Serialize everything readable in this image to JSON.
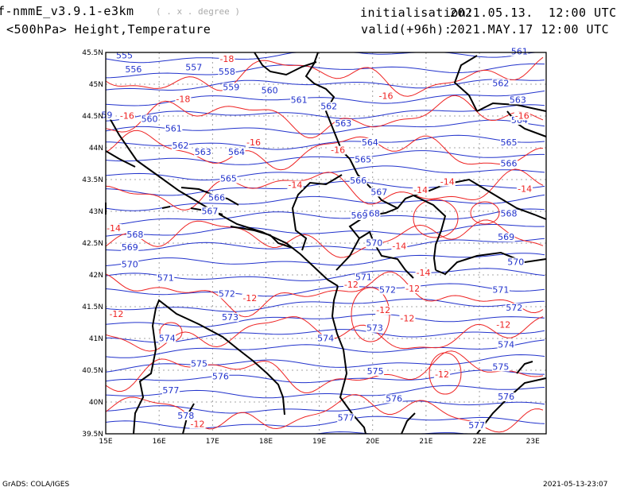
{
  "header": {
    "model": "f-nmmE_v3.9.1-e3km",
    "projection_note": "( . x . degree )",
    "field": "<500hPa> Height,Temperature",
    "init_label": "initialisation:",
    "init_value": "2021.05.13.  12:00 UTC",
    "valid_label": "valid(+96h):",
    "valid_value": "2021.MAY.17 12:00 UTC"
  },
  "footer": {
    "credit": "GrADS: COLA/IGES",
    "stamp": "2021-05-13-23:07"
  },
  "map": {
    "lon_labels": [
      "15E",
      "16E",
      "17E",
      "18E",
      "19E",
      "20E",
      "21E",
      "22E",
      "23E"
    ],
    "lat_labels": [
      "45.5N",
      "45N",
      "44.5N",
      "44N",
      "43.5N",
      "43N",
      "42.5N",
      "42N",
      "41.5N",
      "41N",
      "40.5N",
      "40N",
      "39.5N"
    ],
    "colors": {
      "height": "#2233cc",
      "temperature": "#ee2222",
      "coast": "#000000",
      "grid": "#888888"
    },
    "height_labels": [
      {
        "t": "555",
        "lon": 15.35,
        "lat": 45.42
      },
      {
        "t": "556",
        "lon": 15.52,
        "lat": 45.2
      },
      {
        "t": "557",
        "lon": 16.65,
        "lat": 45.23
      },
      {
        "t": "558",
        "lon": 17.27,
        "lat": 45.16
      },
      {
        "t": "559",
        "lon": 17.35,
        "lat": 44.92
      },
      {
        "t": "560",
        "lon": 18.07,
        "lat": 44.87
      },
      {
        "t": "561",
        "lon": 18.62,
        "lat": 44.72
      },
      {
        "t": "562",
        "lon": 19.18,
        "lat": 44.62
      },
      {
        "t": "563",
        "lon": 19.45,
        "lat": 44.35
      },
      {
        "t": "564",
        "lon": 19.95,
        "lat": 44.05
      },
      {
        "t": "565",
        "lon": 19.82,
        "lat": 43.78
      },
      {
        "t": "566",
        "lon": 19.73,
        "lat": 43.45
      },
      {
        "t": "567",
        "lon": 20.12,
        "lat": 43.27
      },
      {
        "t": "568",
        "lon": 19.98,
        "lat": 42.93
      },
      {
        "t": "569",
        "lon": 19.75,
        "lat": 42.9
      },
      {
        "t": "570",
        "lon": 20.03,
        "lat": 42.47
      },
      {
        "t": "571",
        "lon": 19.83,
        "lat": 41.93
      },
      {
        "t": "572",
        "lon": 20.28,
        "lat": 41.73
      },
      {
        "t": "573",
        "lon": 20.04,
        "lat": 41.13
      },
      {
        "t": "574",
        "lon": 19.12,
        "lat": 40.97
      },
      {
        "t": "575",
        "lon": 20.05,
        "lat": 40.45
      },
      {
        "t": "576",
        "lon": 20.4,
        "lat": 40.02
      },
      {
        "t": "577",
        "lon": 19.5,
        "lat": 39.72
      },
      {
        "t": "59",
        "lon": 15.02,
        "lat": 44.48
      },
      {
        "t": "560",
        "lon": 15.82,
        "lat": 44.42
      },
      {
        "t": "561",
        "lon": 16.27,
        "lat": 44.27
      },
      {
        "t": "562",
        "lon": 16.4,
        "lat": 44.0
      },
      {
        "t": "563",
        "lon": 16.82,
        "lat": 43.9
      },
      {
        "t": "564",
        "lon": 17.45,
        "lat": 43.9
      },
      {
        "t": "565",
        "lon": 17.3,
        "lat": 43.48
      },
      {
        "t": "566",
        "lon": 17.08,
        "lat": 43.18
      },
      {
        "t": "567",
        "lon": 16.95,
        "lat": 42.97
      },
      {
        "t": "568",
        "lon": 15.55,
        "lat": 42.6
      },
      {
        "t": "569",
        "lon": 15.45,
        "lat": 42.4
      },
      {
        "t": "570",
        "lon": 15.45,
        "lat": 42.13
      },
      {
        "t": "571",
        "lon": 16.12,
        "lat": 41.92
      },
      {
        "t": "572",
        "lon": 17.27,
        "lat": 41.67
      },
      {
        "t": "573",
        "lon": 17.33,
        "lat": 41.3
      },
      {
        "t": "574",
        "lon": 16.15,
        "lat": 40.97
      },
      {
        "t": "575",
        "lon": 16.75,
        "lat": 40.57
      },
      {
        "t": "576",
        "lon": 17.15,
        "lat": 40.37
      },
      {
        "t": "577",
        "lon": 16.22,
        "lat": 40.15
      },
      {
        "t": "578",
        "lon": 16.5,
        "lat": 39.75
      },
      {
        "t": "561",
        "lon": 22.75,
        "lat": 45.48
      },
      {
        "t": "562",
        "lon": 22.4,
        "lat": 44.98
      },
      {
        "t": "563",
        "lon": 22.72,
        "lat": 44.72
      },
      {
        "t": "564",
        "lon": 22.75,
        "lat": 44.4
      },
      {
        "t": "565",
        "lon": 22.55,
        "lat": 44.05
      },
      {
        "t": "566",
        "lon": 22.55,
        "lat": 43.72
      },
      {
        "t": "568",
        "lon": 22.55,
        "lat": 42.93
      },
      {
        "t": "569",
        "lon": 22.5,
        "lat": 42.56
      },
      {
        "t": "570",
        "lon": 22.68,
        "lat": 42.17
      },
      {
        "t": "571",
        "lon": 22.4,
        "lat": 41.73
      },
      {
        "t": "572",
        "lon": 22.65,
        "lat": 41.45
      },
      {
        "t": "574",
        "lon": 22.5,
        "lat": 40.87
      },
      {
        "t": "575",
        "lon": 22.4,
        "lat": 40.52
      },
      {
        "t": "576",
        "lon": 22.5,
        "lat": 40.05
      },
      {
        "t": "577",
        "lon": 21.95,
        "lat": 39.6
      }
    ],
    "temp_labels": [
      {
        "t": "-18",
        "lon": 17.27,
        "lat": 45.36
      },
      {
        "t": "-18",
        "lon": 16.45,
        "lat": 44.73
      },
      {
        "t": "-16",
        "lon": 15.4,
        "lat": 44.47
      },
      {
        "t": "-16",
        "lon": 17.77,
        "lat": 44.05
      },
      {
        "t": "-16",
        "lon": 19.35,
        "lat": 43.93
      },
      {
        "t": "-16",
        "lon": 20.25,
        "lat": 44.78
      },
      {
        "t": "-16",
        "lon": 22.8,
        "lat": 44.47
      },
      {
        "t": "-14",
        "lon": 18.55,
        "lat": 43.38
      },
      {
        "t": "-14",
        "lon": 20.9,
        "lat": 43.3
      },
      {
        "t": "-14",
        "lon": 21.4,
        "lat": 43.43
      },
      {
        "t": "-14",
        "lon": 22.85,
        "lat": 43.32
      },
      {
        "t": "-14",
        "lon": 15.15,
        "lat": 42.7
      },
      {
        "t": "-14",
        "lon": 20.5,
        "lat": 42.42
      },
      {
        "t": "-14",
        "lon": 20.95,
        "lat": 42.0
      },
      {
        "t": "-12",
        "lon": 17.7,
        "lat": 41.6
      },
      {
        "t": "-12",
        "lon": 19.6,
        "lat": 41.81
      },
      {
        "t": "-12",
        "lon": 20.2,
        "lat": 41.41
      },
      {
        "t": "-12",
        "lon": 20.75,
        "lat": 41.75
      },
      {
        "t": "-12",
        "lon": 20.65,
        "lat": 41.28
      },
      {
        "t": "-12",
        "lon": 15.2,
        "lat": 41.35
      },
      {
        "t": "-12",
        "lon": 22.45,
        "lat": 41.18
      },
      {
        "t": "-12",
        "lon": 21.3,
        "lat": 40.4
      },
      {
        "t": "-12",
        "lon": 16.72,
        "lat": 39.62
      }
    ]
  }
}
